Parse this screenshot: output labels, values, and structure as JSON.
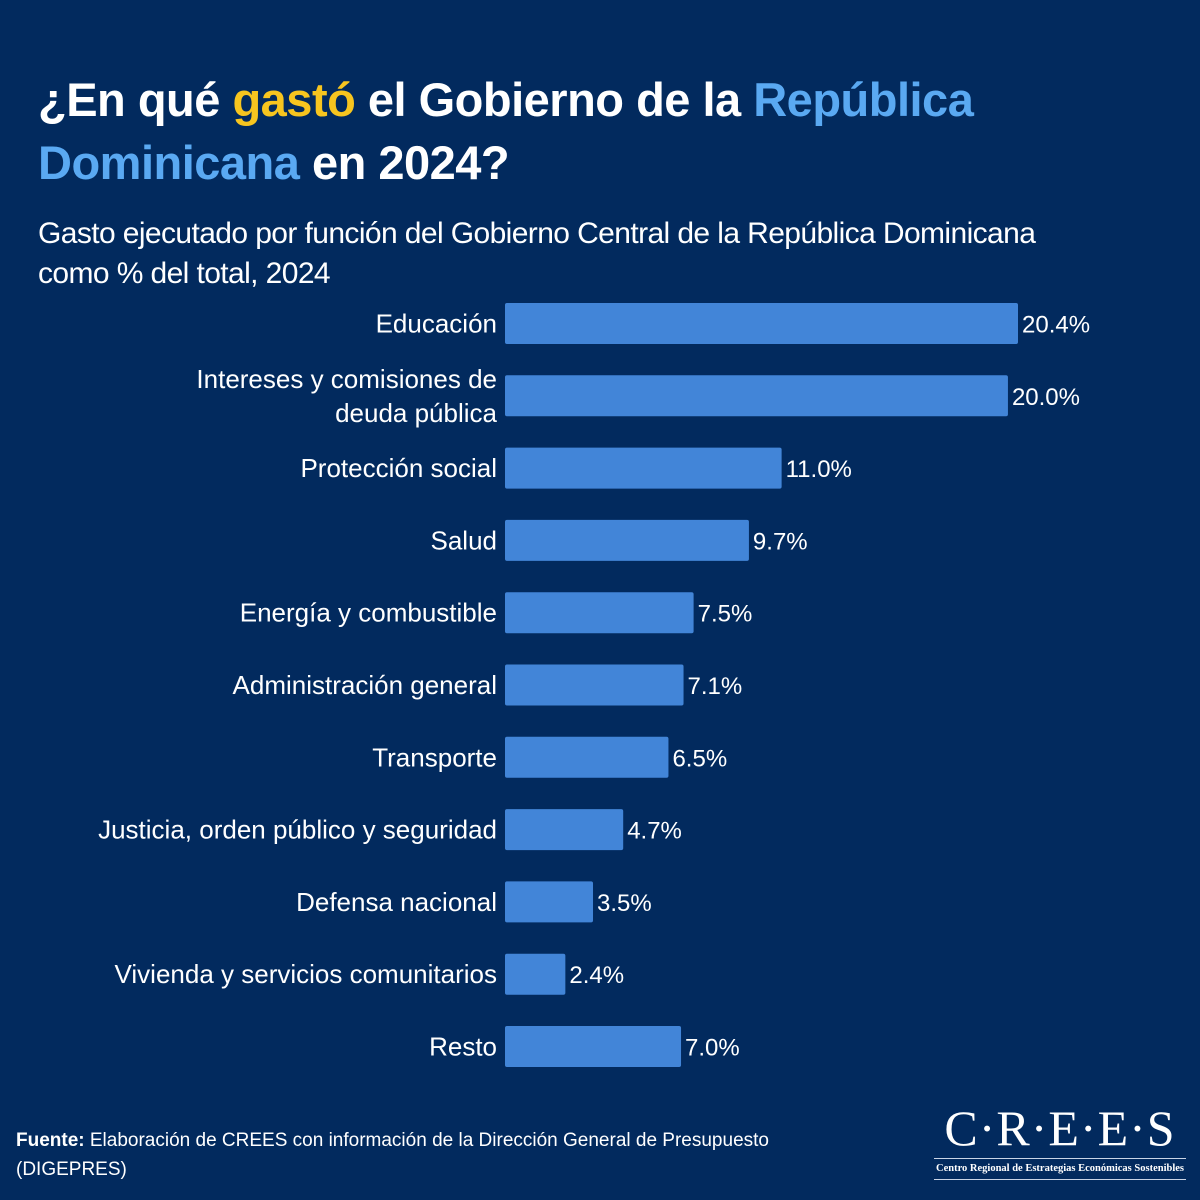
{
  "title": {
    "part1": "¿En qué ",
    "highlight_yellow": "gastó",
    "part2": " el Gobierno de la ",
    "highlight_blue": "República Dominicana",
    "part3": " en 2024?"
  },
  "colors": {
    "background": "#022a5e",
    "bar": "#4285d8",
    "highlight_yellow": "#f7c51f",
    "highlight_blue": "#5aa9f2",
    "text": "#ffffff"
  },
  "chart_data": {
    "type": "bar",
    "orientation": "horizontal",
    "title": "Gasto ejecutado por función del Gobierno Central de la República Dominicana como % del total,  2024",
    "xlabel": "",
    "ylabel": "",
    "unit": "%",
    "grid": false,
    "legend": "none",
    "xlim": [
      0,
      20.4
    ],
    "categories": [
      [
        "Educación"
      ],
      [
        "Intereses y comisiones de",
        "deuda pública"
      ],
      [
        "Protección social"
      ],
      [
        "Salud"
      ],
      [
        "Energía y combustible"
      ],
      [
        "Administración general"
      ],
      [
        "Transporte"
      ],
      [
        "Justicia, orden público y seguridad"
      ],
      [
        "Defensa nacional"
      ],
      [
        "Vivienda y servicios comunitarios"
      ],
      [
        "Resto"
      ]
    ],
    "values": [
      20.4,
      20.0,
      11.0,
      9.7,
      7.5,
      7.1,
      6.5,
      4.7,
      3.5,
      2.4,
      7.0
    ],
    "data_labels": [
      "20.4%",
      "20.0%",
      "11.0%",
      "9.7%",
      "7.5%",
      "7.1%",
      "6.5%",
      "4.7%",
      "3.5%",
      "2.4%",
      "7.0%"
    ]
  },
  "subtitle": {
    "line1": "Gasto ejecutado por función del Gobierno Central de la República Dominicana",
    "line2": "como % del total,  2024"
  },
  "source": {
    "label": "Fuente:",
    "text": " Elaboración de CREES con información de la Dirección General de Presupuesto (DIGEPRES)"
  },
  "logo": {
    "name": "C·R·E·E·S",
    "tagline": "Centro Regional de Estrategias Económicas Sostenibles"
  }
}
